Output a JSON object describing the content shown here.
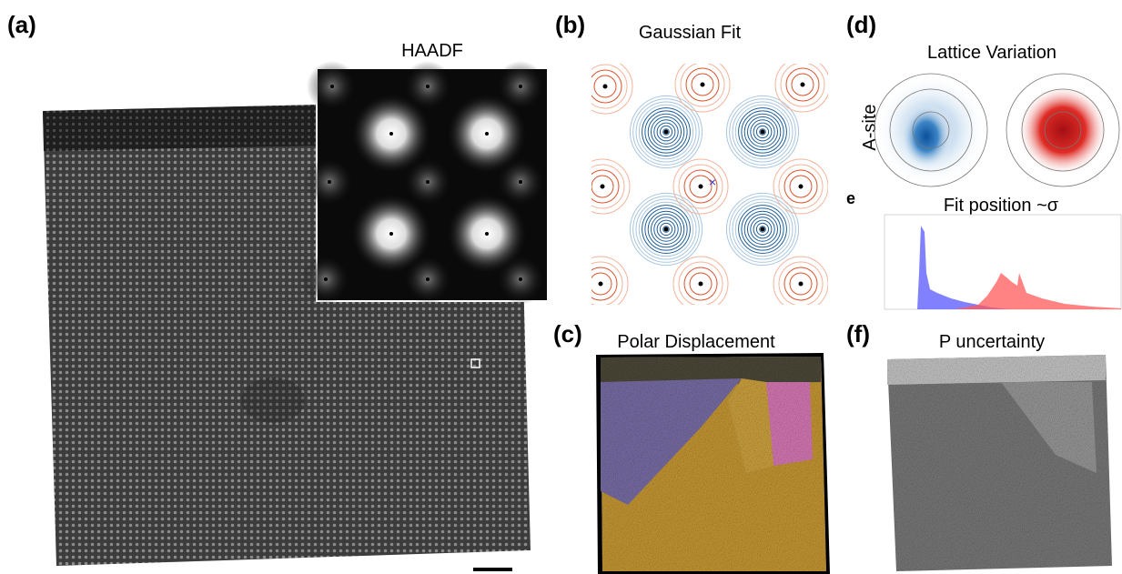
{
  "panels": {
    "a": {
      "label": "(a)",
      "title": "HAADF"
    },
    "b": {
      "label": "(b)",
      "title": "Gaussian Fit"
    },
    "c": {
      "label": "(c)",
      "title": "Polar Displacement"
    },
    "d": {
      "label": "(d)",
      "title": "Lattice Variation",
      "row_label": "A-site"
    },
    "e": {
      "label": "e",
      "title": "Fit position ~σ"
    },
    "f": {
      "label": "(f)",
      "title": "P uncertainty"
    }
  }
}
